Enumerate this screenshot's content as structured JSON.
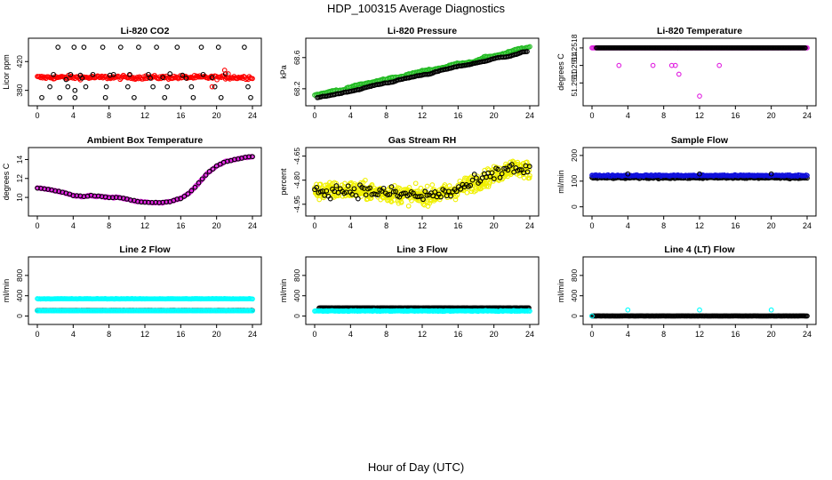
{
  "figure": {
    "title": "HDP_100315  Average Diagnostics",
    "xlabel": "Hour of Day (UTC)"
  },
  "colors": {
    "black": "#000000",
    "red": "#ff0000",
    "green": "#22bb22",
    "magenta": "#e020e0",
    "yellow": "#f0f000",
    "blue": "#1010dd",
    "cyan": "#00ffff"
  },
  "chart_data": [
    {
      "type": "scatter",
      "title": "Li-820 CO2",
      "ylabel": "Licor ppm",
      "xlim": [
        0,
        24
      ],
      "ylim": [
        366,
        445
      ],
      "xticks": [
        "0",
        "4",
        "8",
        "12",
        "16",
        "20",
        "24"
      ],
      "yticks": [
        "380",
        "420"
      ],
      "series": [
        {
          "color": "red",
          "model": "band",
          "params": [
            0,
            24,
            398,
            2.5
          ]
        },
        {
          "color": "black",
          "model": "pairs",
          "points": [
            [
              0.5,
              370
            ],
            [
              1.4,
              385
            ],
            [
              1.8,
              402
            ],
            [
              2.3,
              440
            ],
            [
              2.5,
              370
            ],
            [
              3.2,
              395
            ],
            [
              3.4,
              385
            ],
            [
              3.7,
              402
            ],
            [
              4.1,
              440
            ],
            [
              4.2,
              370
            ],
            [
              4.8,
              401
            ],
            [
              5.0,
              397
            ],
            [
              5.2,
              440
            ],
            [
              5.4,
              385
            ],
            [
              6.2,
              402
            ],
            [
              7.3,
              440
            ],
            [
              7.6,
              370
            ],
            [
              7.7,
              385
            ],
            [
              8.1,
              401
            ],
            [
              8.5,
              402
            ],
            [
              9.3,
              440
            ],
            [
              10.1,
              385
            ],
            [
              10.3,
              402
            ],
            [
              10.8,
              370
            ],
            [
              11.3,
              440
            ],
            [
              12.4,
              402
            ],
            [
              12.6,
              397
            ],
            [
              12.9,
              385
            ],
            [
              13.3,
              440
            ],
            [
              14.2,
              370
            ],
            [
              14.5,
              385
            ],
            [
              14.8,
              403
            ],
            [
              15.6,
              440
            ],
            [
              16.2,
              401
            ],
            [
              16.6,
              397
            ],
            [
              17.2,
              385
            ],
            [
              17.4,
              370
            ],
            [
              18.3,
              440
            ],
            [
              18.5,
              402
            ],
            [
              19.5,
              398
            ],
            [
              19.8,
              385
            ],
            [
              20.2,
              440
            ],
            [
              20.5,
              370
            ],
            [
              21.0,
              403
            ],
            [
              23.1,
              440
            ],
            [
              23.5,
              385
            ],
            [
              23.8,
              370
            ],
            [
              4.2,
              380
            ],
            [
              14.0,
              398
            ]
          ]
        },
        {
          "color": "red",
          "model": "pairs",
          "points": [
            [
              20.9,
              408
            ],
            [
              21.3,
              403
            ],
            [
              19.5,
              385
            ]
          ]
        }
      ]
    },
    {
      "type": "scatter",
      "title": "Li-820 Pressure",
      "ylabel": "kPa",
      "xlim": [
        0,
        24
      ],
      "ylim": [
        68.05,
        68.78
      ],
      "xticks": [
        "0",
        "4",
        "8",
        "12",
        "16",
        "20",
        "24"
      ],
      "yticks": [
        "68.2",
        "68.6"
      ],
      "series": [
        {
          "color": "green",
          "model": "walk",
          "params": [
            0,
            24,
            68.12,
            68.73,
            0.035
          ]
        },
        {
          "color": "black",
          "model": "walk",
          "params": [
            0.3,
            23.8,
            68.08,
            68.68,
            0.02
          ]
        }
      ]
    },
    {
      "type": "scatter",
      "title": "Li-820 Temperature",
      "ylabel": "degrees C",
      "xlim": [
        0,
        24
      ],
      "ylim": [
        51.2506,
        51.2519
      ],
      "xticks": [
        "0",
        "4",
        "8",
        "12",
        "16",
        "20",
        "24"
      ],
      "yticks": [
        "51.2510",
        "51.2514",
        "51.2518"
      ],
      "series": [
        {
          "color": "magenta",
          "model": "band",
          "params": [
            0,
            24,
            51.2518,
            0.0
          ]
        },
        {
          "color": "black",
          "model": "band",
          "params": [
            0.5,
            23.8,
            51.2518,
            0.0
          ]
        },
        {
          "color": "magenta",
          "model": "pairs",
          "points": [
            [
              3.0,
              51.2514
            ],
            [
              6.8,
              51.2514
            ],
            [
              8.9,
              51.2514
            ],
            [
              9.3,
              51.2514
            ],
            [
              9.7,
              51.2512
            ],
            [
              12.0,
              51.2507
            ],
            [
              14.2,
              51.2514
            ]
          ]
        }
      ]
    },
    {
      "type": "scatter",
      "title": "Ambient Box Temperature",
      "ylabel": "degrees C",
      "xlim": [
        0,
        24
      ],
      "ylim": [
        8.6,
        14.7
      ],
      "xticks": [
        "0",
        "4",
        "8",
        "12",
        "16",
        "20",
        "24"
      ],
      "yticks": [
        "10",
        "12",
        "14"
      ],
      "series": [
        {
          "color": "magenta",
          "model": "curve",
          "knots": [
            [
              0,
              11.0
            ],
            [
              1,
              10.9
            ],
            [
              2,
              10.7
            ],
            [
              3,
              10.5
            ],
            [
              4,
              10.2
            ],
            [
              5,
              10.1
            ],
            [
              6,
              10.2
            ],
            [
              7,
              10.1
            ],
            [
              8,
              10.0
            ],
            [
              9,
              10.0
            ],
            [
              10,
              9.8
            ],
            [
              11,
              9.6
            ],
            [
              12,
              9.5
            ],
            [
              13,
              9.45
            ],
            [
              14,
              9.45
            ],
            [
              15,
              9.6
            ],
            [
              16,
              9.9
            ],
            [
              17,
              10.5
            ],
            [
              18,
              11.5
            ],
            [
              19,
              12.6
            ],
            [
              20,
              13.3
            ],
            [
              21,
              13.8
            ],
            [
              22,
              14.0
            ],
            [
              23,
              14.2
            ],
            [
              24,
              14.3
            ]
          ],
          "step": 0.12
        },
        {
          "color": "black",
          "model": "curve",
          "knots": [
            [
              0,
              11.0
            ],
            [
              1,
              10.9
            ],
            [
              2,
              10.7
            ],
            [
              3,
              10.5
            ],
            [
              4,
              10.2
            ],
            [
              5,
              10.1
            ],
            [
              6,
              10.2
            ],
            [
              7,
              10.1
            ],
            [
              8,
              10.0
            ],
            [
              9,
              10.0
            ],
            [
              10,
              9.8
            ],
            [
              11,
              9.6
            ],
            [
              12,
              9.5
            ],
            [
              13,
              9.45
            ],
            [
              14,
              9.45
            ],
            [
              15,
              9.6
            ],
            [
              16,
              9.9
            ],
            [
              17,
              10.5
            ],
            [
              18,
              11.5
            ],
            [
              19,
              12.6
            ],
            [
              20,
              13.3
            ],
            [
              21,
              13.8
            ],
            [
              22,
              14.0
            ],
            [
              23,
              14.2
            ],
            [
              24,
              14.3
            ]
          ],
          "step": 0.4
        }
      ]
    },
    {
      "type": "scatter",
      "title": "Gas Stream RH",
      "ylabel": "percent",
      "xlim": [
        0,
        24
      ],
      "ylim": [
        -4.99,
        -4.63
      ],
      "xticks": [
        "0",
        "4",
        "8",
        "12",
        "16",
        "20",
        "24"
      ],
      "yticks": [
        "-4.95",
        "-4.80",
        "-4.65"
      ],
      "series": [
        {
          "color": "yellow",
          "model": "noisy",
          "knots": [
            [
              0,
              -4.87
            ],
            [
              4,
              -4.86
            ],
            [
              8,
              -4.88
            ],
            [
              12,
              -4.9
            ],
            [
              15,
              -4.88
            ],
            [
              18,
              -4.81
            ],
            [
              20,
              -4.77
            ],
            [
              22,
              -4.72
            ],
            [
              24,
              -4.74
            ]
          ],
          "params": [
            0.05,
            0.04
          ]
        },
        {
          "color": "black",
          "model": "noisy",
          "knots": [
            [
              0,
              -4.87
            ],
            [
              4,
              -4.86
            ],
            [
              8,
              -4.88
            ],
            [
              12,
              -4.9
            ],
            [
              15,
              -4.88
            ],
            [
              18,
              -4.81
            ],
            [
              20,
              -4.77
            ],
            [
              22,
              -4.72
            ],
            [
              24,
              -4.74
            ]
          ],
          "params": [
            0.04,
            0.22
          ]
        }
      ]
    },
    {
      "type": "scatter",
      "title": "Sample Flow",
      "ylabel": "ml/min",
      "xlim": [
        0,
        24
      ],
      "ylim": [
        -15,
        210
      ],
      "xticks": [
        "0",
        "4",
        "8",
        "12",
        "16",
        "20",
        "24"
      ],
      "yticks": [
        "0",
        "100",
        "200"
      ],
      "series": [
        {
          "color": "black",
          "model": "band",
          "params": [
            0,
            24,
            113,
            3
          ]
        },
        {
          "color": "blue",
          "model": "band",
          "params": [
            0,
            24,
            122,
            2.5
          ]
        },
        {
          "color": "black",
          "model": "pairs",
          "points": [
            [
              4.0,
              128
            ],
            [
              12.0,
              128
            ],
            [
              20.0,
              128
            ]
          ]
        }
      ]
    },
    {
      "type": "scatter",
      "title": "Line 2 Flow",
      "ylabel": "ml/min",
      "xlim": [
        0,
        24
      ],
      "ylim": [
        -60,
        1060
      ],
      "xticks": [
        "0",
        "4",
        "8",
        "12",
        "16",
        "20",
        "24"
      ],
      "yticks": [
        "0",
        "400",
        "800"
      ],
      "series": [
        {
          "color": "cyan",
          "model": "band",
          "params": [
            0,
            24,
            340,
            4
          ]
        },
        {
          "color": "black",
          "model": "band",
          "params": [
            0,
            24,
            110,
            2
          ]
        },
        {
          "color": "cyan",
          "model": "band",
          "params": [
            0,
            24,
            105,
            1
          ]
        }
      ]
    },
    {
      "type": "scatter",
      "title": "Line 3 Flow",
      "ylabel": "ml/min",
      "xlim": [
        0,
        24
      ],
      "ylim": [
        -60,
        1060
      ],
      "xticks": [
        "0",
        "4",
        "8",
        "12",
        "16",
        "20",
        "24"
      ],
      "yticks": [
        "0",
        "400",
        "800"
      ],
      "series": [
        {
          "color": "black",
          "model": "band",
          "params": [
            0.5,
            24,
            160,
            2
          ]
        },
        {
          "color": "cyan",
          "model": "band",
          "params": [
            0,
            24,
            100,
            6
          ]
        }
      ]
    },
    {
      "type": "scatter",
      "title": "Line 4 (LT) Flow",
      "ylabel": "ml/min",
      "xlim": [
        0,
        24
      ],
      "ylim": [
        -60,
        1060
      ],
      "xticks": [
        "0",
        "4",
        "8",
        "12",
        "16",
        "20",
        "24"
      ],
      "yticks": [
        "0",
        "400",
        "800"
      ],
      "series": [
        {
          "color": "black",
          "model": "band",
          "params": [
            0,
            24,
            2,
            1
          ]
        },
        {
          "color": "cyan",
          "model": "pairs",
          "points": [
            [
              0.0,
              2
            ],
            [
              4.0,
              120
            ],
            [
              12.0,
              120
            ],
            [
              20.0,
              120
            ]
          ]
        }
      ]
    }
  ]
}
